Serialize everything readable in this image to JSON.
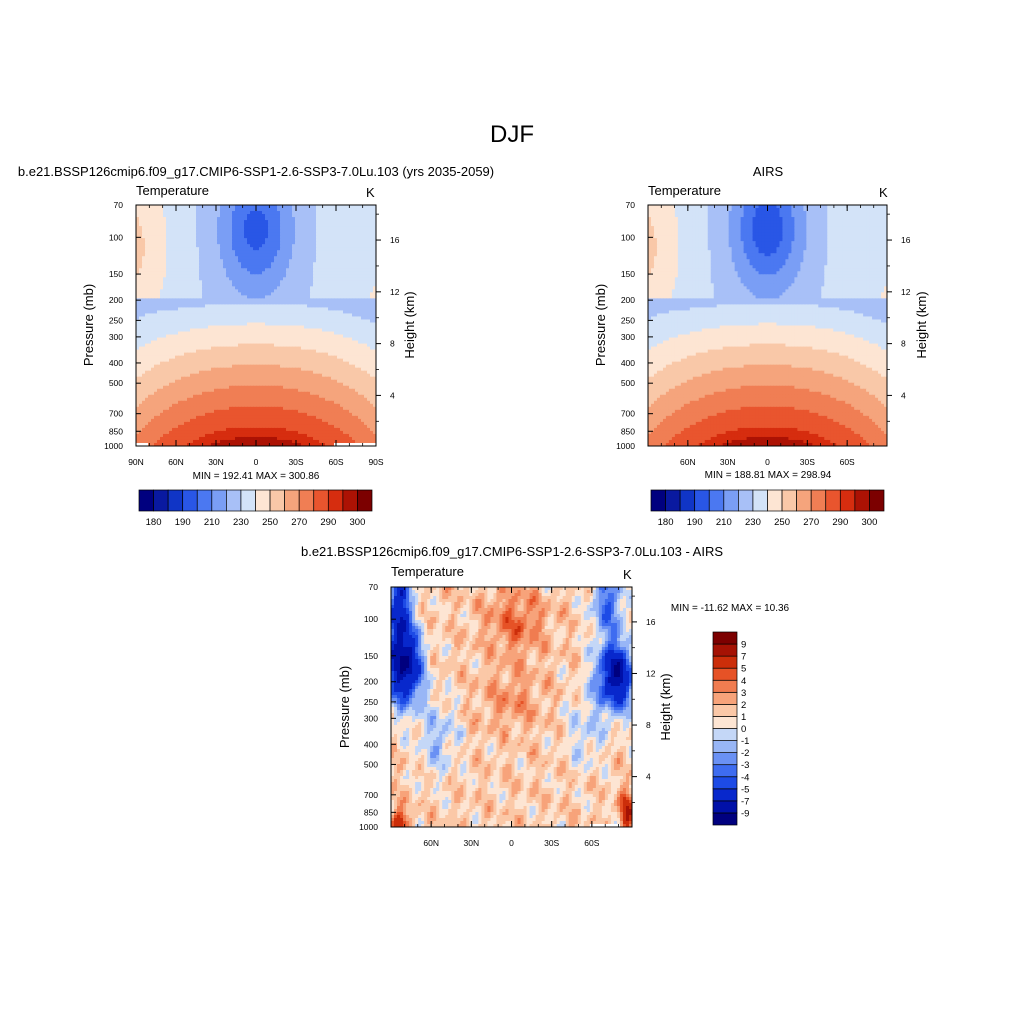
{
  "figure": {
    "super_title": "DJF",
    "variable": "Temperature",
    "units": "K",
    "y_label_left": "Pressure (mb)",
    "y_label_right": "Height (km)"
  },
  "colors": {
    "absolute_scale": [
      "#00007f",
      "#0919a0",
      "#1035c6",
      "#2956e6",
      "#4b78f1",
      "#7a9ef5",
      "#a8c0f7",
      "#d3e3f8",
      "#fde5d3",
      "#f9c8a8",
      "#f5a47c",
      "#f07e54",
      "#e9552e",
      "#d62d0f",
      "#ac1204",
      "#7c0000"
    ],
    "difference_scale": [
      "#00007f",
      "#0010a8",
      "#0828cc",
      "#1d4be6",
      "#3e6cf0",
      "#6a91f4",
      "#98b6f6",
      "#c4d7f7",
      "#fde5d3",
      "#fbc8a7",
      "#f7a37a",
      "#f07c50",
      "#e65226",
      "#cc2e0a",
      "#a51204",
      "#7c0000"
    ]
  },
  "chart_data": [
    {
      "type": "heatmap",
      "panel": "model",
      "title": "b.e21.BSSP126cmip6.f09_g17.CMIP6-SSP1-2.6-SSP3-7.0Lu.103 (yrs 2035-2059)",
      "left_label": "Temperature",
      "right_label": "K",
      "ylabel": "Pressure (mb)",
      "ylabel_right": "Height (km)",
      "xlim": [
        -90,
        90
      ],
      "ylim": [
        1000,
        70
      ],
      "y_scale": "log",
      "x_ticks": [
        -90,
        -60,
        -30,
        0,
        30,
        60,
        90
      ],
      "x_tick_labels": [
        "90N",
        "60N",
        "30N",
        "0",
        "30S",
        "60S",
        "90S"
      ],
      "y_ticks": [
        70,
        100,
        150,
        200,
        250,
        300,
        400,
        500,
        700,
        850,
        1000
      ],
      "y_tick_labels": [
        "70",
        "100",
        "150",
        "200",
        "250",
        "300",
        "400",
        "500",
        "700",
        "850",
        "1000"
      ],
      "right_ticks_km": [
        4,
        8,
        12,
        16
      ],
      "right_tick_labels": [
        "4",
        "8",
        "12",
        "16"
      ],
      "min": 192.41,
      "max": 300.86,
      "stats_text": "MIN = 192.41   MAX = 300.86",
      "colorbar": {
        "orientation": "horizontal",
        "levels": [
          180,
          185,
          190,
          200,
          210,
          220,
          230,
          240,
          250,
          260,
          270,
          280,
          290,
          295,
          300
        ],
        "labels": [
          "180",
          "190",
          "210",
          "230",
          "250",
          "270",
          "290",
          "300"
        ],
        "label_positions": [
          0,
          2,
          4,
          6,
          8,
          10,
          12,
          14
        ]
      }
    },
    {
      "type": "heatmap",
      "panel": "obs",
      "title": "AIRS",
      "left_label": "Temperature",
      "right_label": "K",
      "ylabel": "Pressure (mb)",
      "ylabel_right": "Height (km)",
      "xlim": [
        -90,
        90
      ],
      "ylim": [
        1000,
        70
      ],
      "y_scale": "log",
      "x_ticks": [
        -60,
        -30,
        0,
        30,
        60
      ],
      "x_tick_labels": [
        "60N",
        "30N",
        "0",
        "30S",
        "60S"
      ],
      "y_ticks": [
        70,
        100,
        150,
        200,
        250,
        300,
        400,
        500,
        700,
        850,
        1000
      ],
      "y_tick_labels": [
        "70",
        "100",
        "150",
        "200",
        "250",
        "300",
        "400",
        "500",
        "700",
        "850",
        "1000"
      ],
      "right_ticks_km": [
        4,
        8,
        12,
        16
      ],
      "right_tick_labels": [
        "4",
        "8",
        "12",
        "16"
      ],
      "min": 188.81,
      "max": 298.94,
      "stats_text": "MIN = 188.81   MAX = 298.94",
      "colorbar": {
        "orientation": "horizontal",
        "levels": [
          180,
          185,
          190,
          200,
          210,
          220,
          230,
          240,
          250,
          260,
          270,
          280,
          290,
          295,
          300
        ],
        "labels": [
          "180",
          "190",
          "210",
          "230",
          "250",
          "270",
          "290",
          "300"
        ],
        "label_positions": [
          0,
          2,
          4,
          6,
          8,
          10,
          12,
          14
        ]
      }
    },
    {
      "type": "heatmap",
      "panel": "difference",
      "title": "b.e21.BSSP126cmip6.f09_g17.CMIP6-SSP1-2.6-SSP3-7.0Lu.103 - AIRS",
      "left_label": "Temperature",
      "right_label": "K",
      "ylabel": "Pressure (mb)",
      "ylabel_right": "Height (km)",
      "xlim": [
        -90,
        90
      ],
      "ylim": [
        1000,
        70
      ],
      "y_scale": "log",
      "x_ticks": [
        -60,
        -30,
        0,
        30,
        60
      ],
      "x_tick_labels": [
        "60N",
        "30N",
        "0",
        "30S",
        "60S"
      ],
      "y_ticks": [
        70,
        100,
        150,
        200,
        250,
        300,
        400,
        500,
        700,
        850,
        1000
      ],
      "y_tick_labels": [
        "70",
        "100",
        "150",
        "200",
        "250",
        "300",
        "400",
        "500",
        "700",
        "850",
        "1000"
      ],
      "right_ticks_km": [
        4,
        8,
        12,
        16
      ],
      "right_tick_labels": [
        "4",
        "8",
        "12",
        "16"
      ],
      "min": -11.62,
      "max": 10.36,
      "stats_text": "MIN = -11.62  MAX =  10.36",
      "colorbar": {
        "orientation": "vertical",
        "levels": [
          -9,
          -7,
          -5,
          -4,
          -3,
          -2,
          -1,
          0,
          1,
          2,
          3,
          4,
          5,
          7,
          9
        ],
        "labels": [
          "-9",
          "-7",
          "-5",
          "-4",
          "-3",
          "-2",
          "-1",
          "0",
          "1",
          "2",
          "3",
          "4",
          "5",
          "7",
          "9"
        ]
      }
    }
  ]
}
